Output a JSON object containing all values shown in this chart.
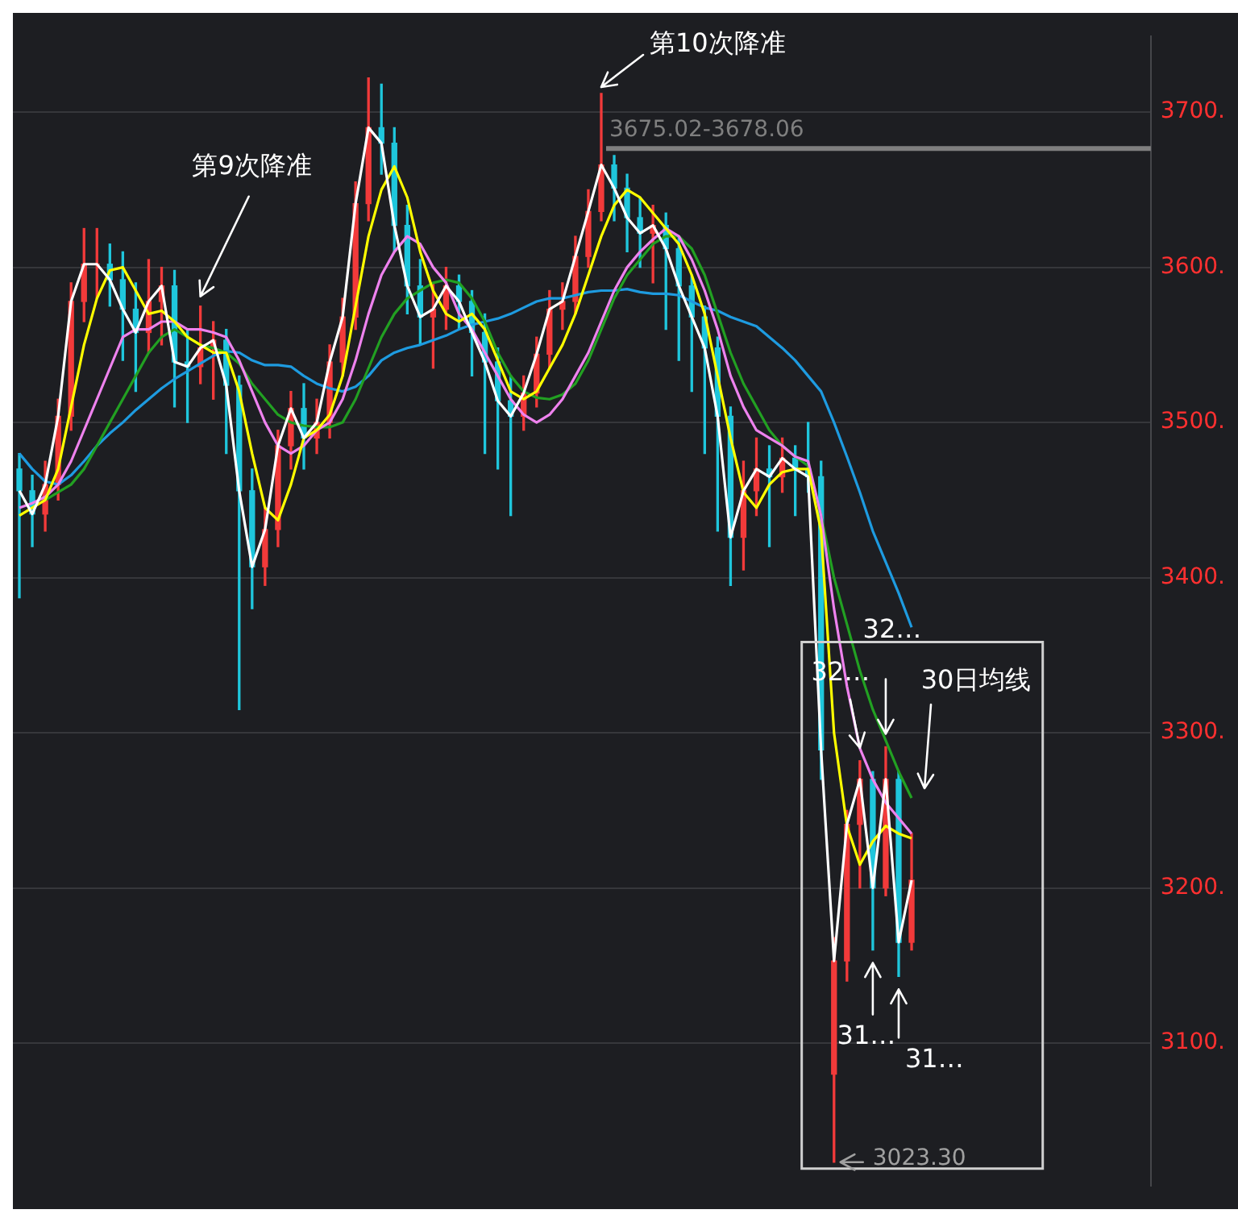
{
  "chart_data": {
    "type": "candlestick",
    "categories": [
      null,
      null,
      null,
      null,
      null,
      null,
      null,
      null,
      null,
      null,
      null,
      null,
      null,
      null,
      null,
      null,
      null,
      null,
      null,
      null,
      null,
      null,
      null,
      null,
      null,
      null,
      null,
      null,
      null,
      null,
      null,
      null,
      null,
      null,
      null,
      null,
      null,
      null,
      null,
      null,
      null,
      null,
      null,
      null,
      null,
      null,
      null,
      null,
      null,
      null,
      null,
      null,
      null,
      null,
      null,
      null,
      null,
      null,
      null,
      null,
      null,
      null,
      null,
      null,
      null,
      null,
      null,
      null,
      null,
      null,
      null,
      null,
      null,
      null,
      null,
      null,
      null,
      null,
      null,
      null,
      null,
      null,
      null,
      null,
      null,
      null,
      null,
      null
    ],
    "ohlc": [
      [
        3470,
        3480,
        3387,
        3456
      ],
      [
        3456,
        3466,
        3420,
        3441
      ],
      [
        3441,
        3475,
        3430,
        3460
      ],
      [
        3460,
        3515,
        3450,
        3504
      ],
      [
        3504,
        3590,
        3495,
        3578
      ],
      [
        3578,
        3625,
        3565,
        3602
      ],
      [
        3602,
        3625,
        3580,
        3602
      ],
      [
        3602,
        3615,
        3575,
        3592
      ],
      [
        3592,
        3610,
        3540,
        3573
      ],
      [
        3573,
        3590,
        3520,
        3558
      ],
      [
        3558,
        3605,
        3545,
        3578
      ],
      [
        3578,
        3600,
        3550,
        3588
      ],
      [
        3588,
        3598,
        3510,
        3539
      ],
      [
        3539,
        3560,
        3500,
        3536
      ],
      [
        3536,
        3575,
        3525,
        3548
      ],
      [
        3548,
        3565,
        3515,
        3553
      ],
      [
        3553,
        3560,
        3480,
        3524
      ],
      [
        3524,
        3530,
        3315,
        3456
      ],
      [
        3456,
        3470,
        3380,
        3407
      ],
      [
        3407,
        3445,
        3395,
        3431
      ],
      [
        3431,
        3495,
        3420,
        3485
      ],
      [
        3485,
        3520,
        3470,
        3509
      ],
      [
        3509,
        3525,
        3470,
        3490
      ],
      [
        3490,
        3515,
        3480,
        3500
      ],
      [
        3500,
        3550,
        3490,
        3539
      ],
      [
        3539,
        3580,
        3530,
        3568
      ],
      [
        3568,
        3655,
        3560,
        3641
      ],
      [
        3641,
        3722,
        3630,
        3690
      ],
      [
        3690,
        3718,
        3660,
        3680
      ],
      [
        3680,
        3690,
        3610,
        3627
      ],
      [
        3627,
        3640,
        3570,
        3588
      ],
      [
        3588,
        3605,
        3550,
        3568
      ],
      [
        3568,
        3590,
        3535,
        3573
      ],
      [
        3573,
        3600,
        3560,
        3588
      ],
      [
        3588,
        3595,
        3560,
        3578
      ],
      [
        3578,
        3585,
        3530,
        3558
      ],
      [
        3558,
        3570,
        3480,
        3539
      ],
      [
        3539,
        3548,
        3470,
        3514
      ],
      [
        3514,
        3530,
        3440,
        3504
      ],
      [
        3504,
        3530,
        3495,
        3519
      ],
      [
        3519,
        3555,
        3510,
        3544
      ],
      [
        3544,
        3585,
        3535,
        3573
      ],
      [
        3573,
        3590,
        3560,
        3578
      ],
      [
        3578,
        3620,
        3570,
        3607
      ],
      [
        3607,
        3650,
        3600,
        3636
      ],
      [
        3636,
        3712,
        3630,
        3666
      ],
      [
        3666,
        3672,
        3630,
        3651
      ],
      [
        3651,
        3660,
        3610,
        3632
      ],
      [
        3632,
        3645,
        3600,
        3622
      ],
      [
        3622,
        3640,
        3590,
        3627
      ],
      [
        3627,
        3635,
        3560,
        3612
      ],
      [
        3612,
        3620,
        3540,
        3588
      ],
      [
        3588,
        3595,
        3520,
        3568
      ],
      [
        3568,
        3575,
        3480,
        3548
      ],
      [
        3548,
        3555,
        3430,
        3504
      ],
      [
        3504,
        3510,
        3395,
        3426
      ],
      [
        3426,
        3475,
        3405,
        3456
      ],
      [
        3456,
        3490,
        3440,
        3470
      ],
      [
        3470,
        3485,
        3420,
        3465
      ],
      [
        3465,
        3490,
        3455,
        3477
      ],
      [
        3477,
        3485,
        3440,
        3470
      ],
      [
        3470,
        3500,
        3455,
        3465
      ],
      [
        3465,
        3475,
        3270,
        3289
      ],
      [
        3080,
        3168,
        3023.3,
        3153
      ],
      [
        3153,
        3250,
        3140,
        3241
      ],
      [
        3241,
        3282,
        3200,
        3270
      ],
      [
        3270,
        3275,
        3160,
        3200
      ],
      [
        3200,
        3291,
        3195,
        3270
      ],
      [
        3270,
        3275,
        3143,
        3165
      ],
      [
        3165,
        3235,
        3160,
        3205
      ],
      null,
      null,
      null,
      null,
      null,
      null,
      null,
      null,
      null,
      null,
      null,
      null,
      null,
      null,
      null,
      null,
      null,
      null
    ],
    "colors": [
      "#1fc6dc",
      "#1fc6dc",
      "#f23a3a",
      "#f23a3a",
      "#f23a3a",
      "#f23a3a",
      "#f23a3a",
      "#1fc6dc",
      "#1fc6dc",
      "#1fc6dc",
      "#f23a3a",
      "#f23a3a",
      "#1fc6dc",
      "#1fc6dc",
      "#f23a3a",
      "#f23a3a",
      "#1fc6dc",
      "#1fc6dc",
      "#1fc6dc",
      "#f23a3a",
      "#f23a3a",
      "#f23a3a",
      "#1fc6dc",
      "#f23a3a",
      "#f23a3a",
      "#f23a3a",
      "#f23a3a",
      "#f23a3a",
      "#1fc6dc",
      "#1fc6dc",
      "#1fc6dc",
      "#1fc6dc",
      "#f23a3a",
      "#f23a3a",
      "#1fc6dc",
      "#1fc6dc",
      "#1fc6dc",
      "#1fc6dc",
      "#1fc6dc",
      "#f23a3a",
      "#f23a3a",
      "#f23a3a",
      "#f23a3a",
      "#f23a3a",
      "#f23a3a",
      "#f23a3a",
      "#1fc6dc",
      "#1fc6dc",
      "#1fc6dc",
      "#f23a3a",
      "#1fc6dc",
      "#1fc6dc",
      "#1fc6dc",
      "#1fc6dc",
      "#1fc6dc",
      "#1fc6dc",
      "#f23a3a",
      "#f23a3a",
      "#1fc6dc",
      "#f23a3a",
      "#1fc6dc",
      "#1fc6dc",
      "#1fc6dc",
      "#f23a3a",
      "#f23a3a",
      "#f23a3a",
      "#1fc6dc",
      "#f23a3a",
      "#1fc6dc",
      "#f23a3a",
      null,
      null,
      null,
      null,
      null,
      null,
      null,
      null,
      null,
      null,
      null,
      null,
      null,
      null,
      null,
      null,
      null,
      null
    ],
    "series": [
      {
        "type": "line",
        "color": "#ffffff",
        "values": [
          3456,
          3441,
          3460,
          3504,
          3578,
          3602,
          3602,
          3592,
          3573,
          3558,
          3578,
          3588,
          3539,
          3536,
          3548,
          3553,
          3524,
          3456,
          3407,
          3431,
          3485,
          3509,
          3490,
          3500,
          3539,
          3568,
          3641,
          3690,
          3680,
          3627,
          3588,
          3568,
          3573,
          3588,
          3578,
          3558,
          3539,
          3514,
          3504,
          3519,
          3544,
          3573,
          3578,
          3607,
          3636,
          3666,
          3651,
          3632,
          3622,
          3627,
          3612,
          3588,
          3568,
          3548,
          3504,
          3426,
          3456,
          3470,
          3465,
          3477,
          3470,
          3465,
          3289,
          3153,
          3241,
          3270,
          3200,
          3270,
          3165,
          3205,
          null,
          null,
          null,
          null,
          null,
          null,
          null,
          null,
          null,
          null,
          null,
          null,
          null,
          null,
          null,
          null,
          null,
          null
        ]
      },
      {
        "type": "line",
        "color": "#ffff00",
        "values": [
          3440,
          3445,
          3450,
          3470,
          3510,
          3550,
          3580,
          3598,
          3600,
          3585,
          3570,
          3572,
          3565,
          3555,
          3550,
          3545,
          3545,
          3520,
          3480,
          3445,
          3437,
          3460,
          3490,
          3495,
          3505,
          3530,
          3575,
          3620,
          3650,
          3665,
          3645,
          3610,
          3585,
          3570,
          3565,
          3570,
          3560,
          3540,
          3520,
          3515,
          3520,
          3535,
          3550,
          3570,
          3595,
          3620,
          3640,
          3650,
          3645,
          3635,
          3625,
          3615,
          3595,
          3570,
          3530,
          3490,
          3455,
          3445,
          3460,
          3468,
          3470,
          3470,
          3430,
          3300,
          3240,
          3215,
          3230,
          3240,
          3235,
          3232,
          null,
          null,
          null,
          null,
          null,
          null,
          null,
          null,
          null,
          null,
          null,
          null,
          null,
          null,
          null,
          null,
          null,
          null
        ]
      },
      {
        "type": "line",
        "color": "#ee82ee",
        "values": [
          3445,
          3448,
          3452,
          3460,
          3475,
          3495,
          3515,
          3535,
          3555,
          3560,
          3560,
          3565,
          3565,
          3560,
          3560,
          3558,
          3555,
          3540,
          3520,
          3500,
          3485,
          3480,
          3485,
          3495,
          3500,
          3515,
          3540,
          3570,
          3595,
          3610,
          3620,
          3615,
          3600,
          3590,
          3570,
          3560,
          3545,
          3530,
          3515,
          3505,
          3500,
          3505,
          3515,
          3530,
          3545,
          3565,
          3585,
          3600,
          3610,
          3618,
          3625,
          3620,
          3605,
          3585,
          3560,
          3530,
          3510,
          3495,
          3490,
          3485,
          3478,
          3475,
          3440,
          3380,
          3330,
          3290,
          3270,
          3255,
          3245,
          3235,
          null,
          null,
          null,
          null,
          null,
          null,
          null,
          null,
          null,
          null,
          null,
          null,
          null,
          null,
          null,
          null,
          null,
          null
        ]
      },
      {
        "type": "line",
        "color": "#22a022",
        "values": [
          null,
          null,
          3450,
          3455,
          3460,
          3470,
          3485,
          3500,
          3515,
          3530,
          3545,
          3555,
          3560,
          3555,
          3550,
          3548,
          3545,
          3538,
          3525,
          3515,
          3505,
          3500,
          3498,
          3497,
          3497,
          3500,
          3515,
          3535,
          3555,
          3570,
          3580,
          3585,
          3590,
          3592,
          3590,
          3580,
          3565,
          3545,
          3530,
          3520,
          3516,
          3515,
          3518,
          3525,
          3540,
          3560,
          3580,
          3595,
          3605,
          3615,
          3620,
          3620,
          3612,
          3595,
          3570,
          3545,
          3525,
          3510,
          3495,
          3485,
          3478,
          3472,
          3440,
          3400,
          3370,
          3340,
          3315,
          3295,
          3275,
          3258,
          null,
          null,
          null,
          null,
          null,
          null,
          null,
          null,
          null,
          null,
          null,
          null,
          null,
          null,
          null,
          null,
          null,
          null
        ]
      },
      {
        "type": "line",
        "color": "#1e9be0",
        "values": [
          3480,
          3470,
          3462,
          3460,
          3466,
          3475,
          3485,
          3493,
          3500,
          3508,
          3515,
          3522,
          3528,
          3533,
          3538,
          3543,
          3546,
          3545,
          3540,
          3537,
          3537,
          3536,
          3530,
          3525,
          3522,
          3520,
          3523,
          3530,
          3540,
          3545,
          3548,
          3550,
          3553,
          3556,
          3560,
          3563,
          3565,
          3567,
          3570,
          3574,
          3578,
          3580,
          3580,
          3582,
          3584,
          3585,
          3585,
          3586,
          3584,
          3583,
          3583,
          3582,
          3578,
          3574,
          3572,
          3568,
          3565,
          3562,
          3555,
          3548,
          3540,
          3530,
          3520,
          3500,
          3478,
          3455,
          3430,
          3410,
          3390,
          3368,
          null,
          null,
          null,
          null,
          null,
          null,
          null,
          null,
          null,
          null,
          null,
          null,
          null,
          null,
          null,
          null,
          null,
          null
        ]
      }
    ],
    "ylim": [
      3008,
      3749
    ],
    "yticks": [
      {
        "value": 3100,
        "label": "3100."
      },
      {
        "value": 3200,
        "label": "3200."
      },
      {
        "value": 3300,
        "label": "3300."
      },
      {
        "value": 3400,
        "label": "3400."
      },
      {
        "value": 3500,
        "label": "3500."
      },
      {
        "value": 3600,
        "label": "3600."
      },
      {
        "value": 3700,
        "label": "3700."
      }
    ],
    "grid": "y",
    "tick_labels": "y",
    "bands": [
      {
        "axis": "y",
        "from": 3675.02,
        "to": 3678.06,
        "label": "3675.02-3678.06",
        "color": "#7f7f7f"
      }
    ],
    "annotations": [
      "第9次降准",
      "第10次降准",
      "3023.30",
      "32…",
      "32…",
      "31…",
      "31…",
      "30日均线"
    ]
  }
}
